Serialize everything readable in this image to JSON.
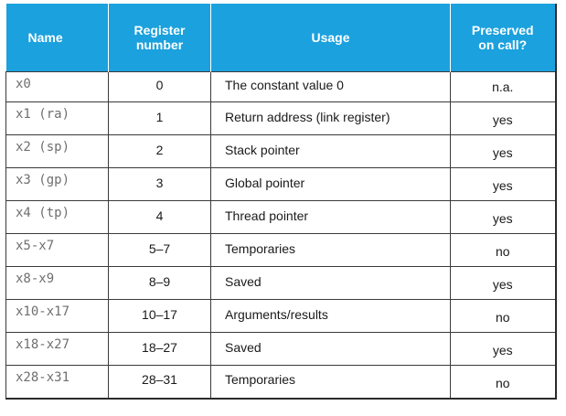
{
  "colors": {
    "header_background": "#1ba1dd",
    "header_text": "#ffffff"
  },
  "table": {
    "headers": {
      "name": "Name",
      "number_line1": "Register",
      "number_line2": "number",
      "usage": "Usage",
      "preserved_line1": "Preserved",
      "preserved_line2": "on call?"
    },
    "rows": [
      {
        "name": "x0",
        "number": "0",
        "usage": "The constant value 0",
        "preserved": "n.a."
      },
      {
        "name": "x1 (ra)",
        "number": "1",
        "usage": "Return address (link register)",
        "preserved": "yes"
      },
      {
        "name": "x2 (sp)",
        "number": "2",
        "usage": "Stack pointer",
        "preserved": "yes"
      },
      {
        "name": "x3 (gp)",
        "number": "3",
        "usage": "Global pointer",
        "preserved": "yes"
      },
      {
        "name": "x4 (tp)",
        "number": "4",
        "usage": "Thread pointer",
        "preserved": "yes"
      },
      {
        "name": "x5-x7",
        "number": "5–7",
        "usage": "Temporaries",
        "preserved": "no"
      },
      {
        "name": "x8-x9",
        "number": "8–9",
        "usage": "Saved",
        "preserved": "yes"
      },
      {
        "name": "x10-x17",
        "number": "10–17",
        "usage": "Arguments/results",
        "preserved": "no"
      },
      {
        "name": "x18-x27",
        "number": "18–27",
        "usage": "Saved",
        "preserved": "yes"
      },
      {
        "name": "x28-x31",
        "number": "28–31",
        "usage": "Temporaries",
        "preserved": "no"
      }
    ]
  }
}
